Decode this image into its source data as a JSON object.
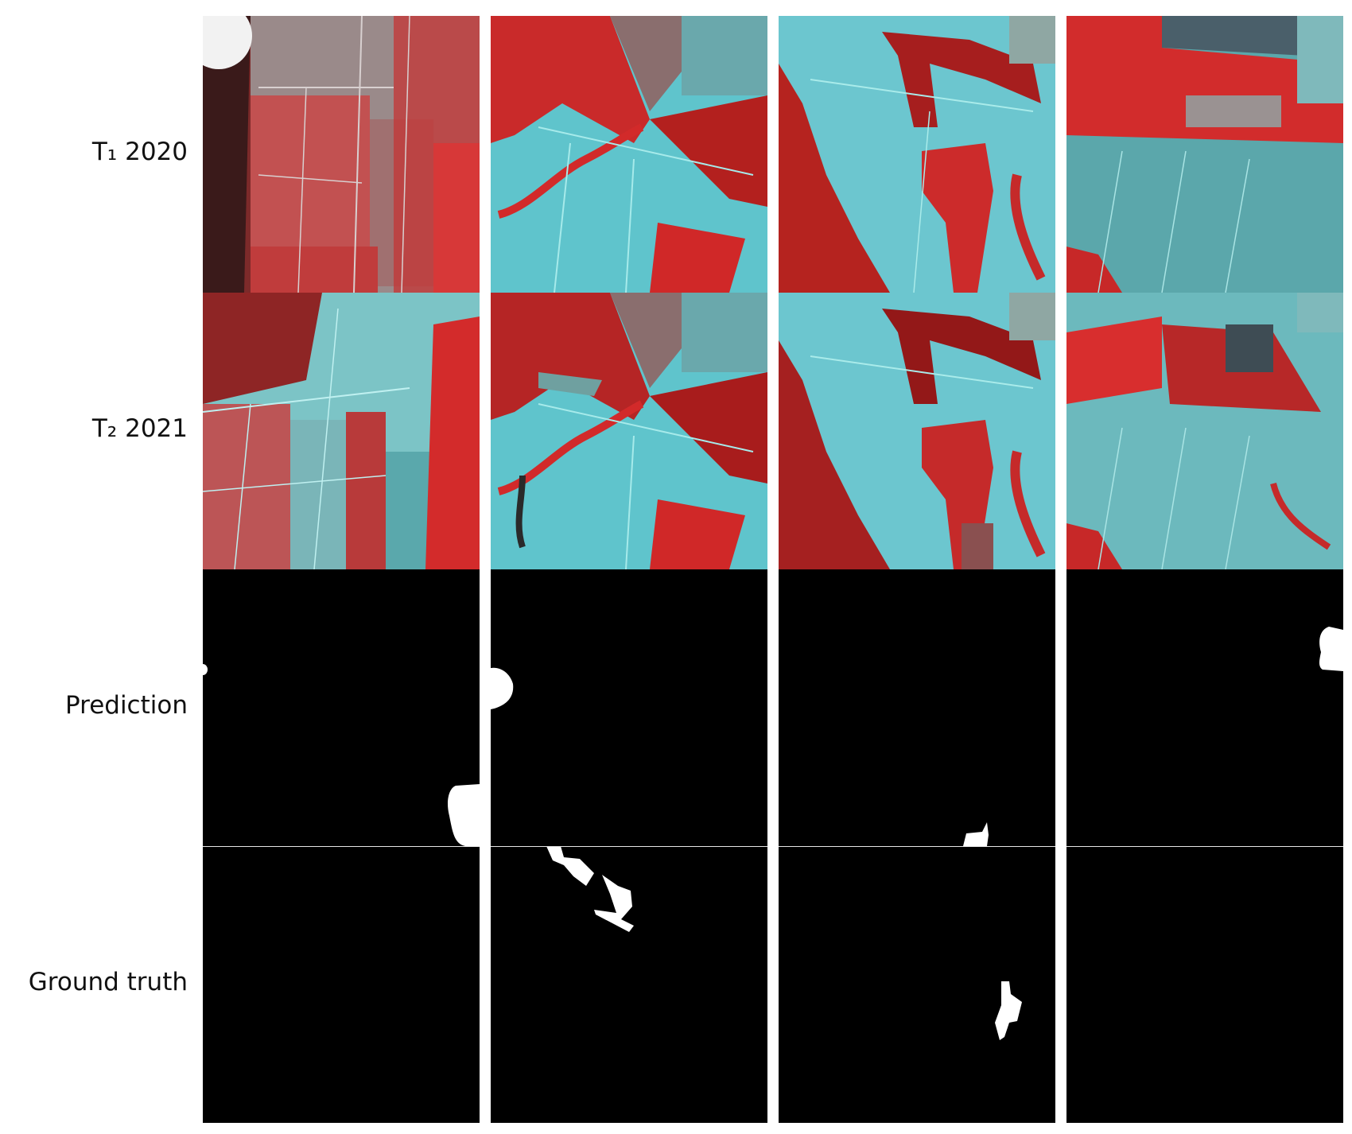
{
  "row_labels": {
    "t1": "T₁ 2020",
    "t2": "T₂ 2021",
    "prediction": "Prediction",
    "ground_truth": "Ground truth"
  },
  "colors": {
    "vegetation_red": "#e02a2a",
    "dark_forest": "#7a1414",
    "cleared_cyan": "#5fc4cc",
    "bright_cyan": "#8fe3e6",
    "grey_field": "#9a8c8c",
    "mask_background": "#000000",
    "mask_change": "#ffffff"
  },
  "columns": 4,
  "rows": [
    "T₁ 2020",
    "T₂ 2021",
    "Prediction",
    "Ground truth"
  ]
}
